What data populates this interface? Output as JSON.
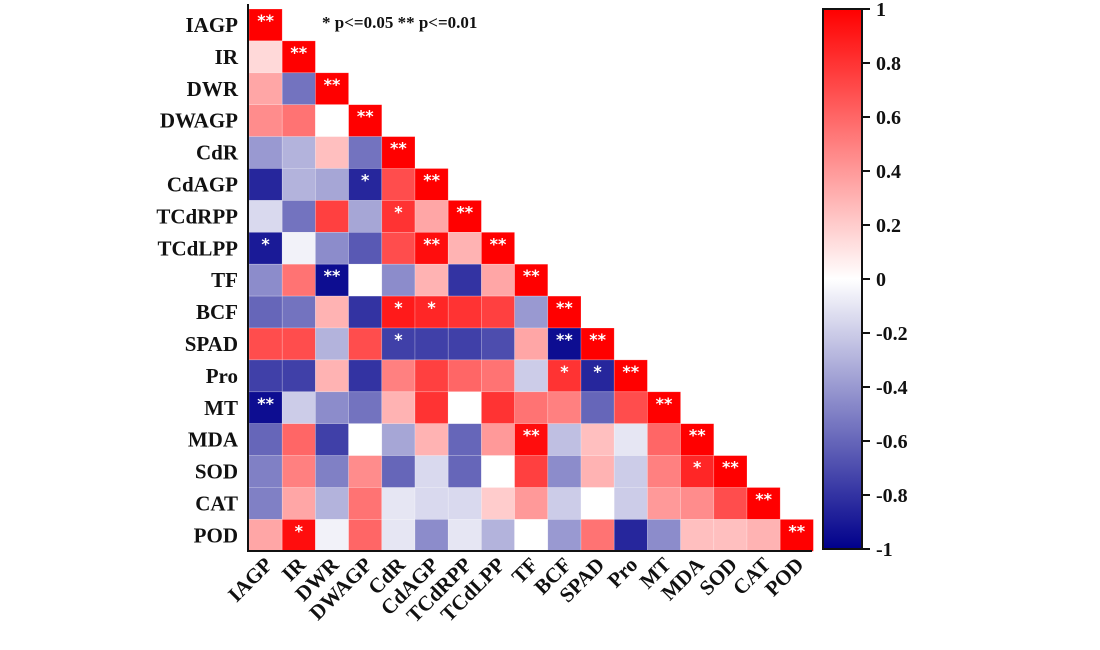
{
  "chart_data": {
    "type": "heatmap",
    "title": "",
    "subtitle": "",
    "xlabel": "",
    "ylabel": "",
    "annotation": "* p<=0.05  ** p<=0.01",
    "variables": [
      "IAGP",
      "IR",
      "DWR",
      "DWAGP",
      "CdR",
      "CdAGP",
      "TCdRPP",
      "TCdLPP",
      "TF",
      "BCF",
      "SPAD",
      "Pro",
      "MT",
      "MDA",
      "SOD",
      "CAT",
      "POD"
    ],
    "matrix": [
      [
        1.0
      ],
      [
        0.15,
        1.0
      ],
      [
        0.35,
        -0.55,
        1.0
      ],
      [
        0.45,
        0.55,
        0.0,
        1.0
      ],
      [
        -0.4,
        -0.3,
        0.25,
        -0.55,
        1.0
      ],
      [
        -0.85,
        -0.3,
        -0.35,
        -0.85,
        0.7,
        1.0
      ],
      [
        -0.15,
        -0.55,
        0.75,
        -0.35,
        0.8,
        0.35,
        1.0
      ],
      [
        -0.9,
        -0.05,
        -0.45,
        -0.65,
        0.7,
        0.95,
        0.3,
        1.0
      ],
      [
        -0.45,
        0.55,
        -0.95,
        0.0,
        -0.45,
        0.3,
        -0.8,
        0.35,
        1.0
      ],
      [
        -0.6,
        -0.55,
        0.3,
        -0.8,
        0.9,
        0.85,
        0.8,
        0.75,
        -0.4,
        1.0
      ],
      [
        0.7,
        0.7,
        -0.3,
        0.7,
        -0.75,
        -0.75,
        -0.75,
        -0.7,
        0.35,
        -0.95,
        1.0
      ],
      [
        -0.75,
        -0.75,
        0.3,
        -0.8,
        0.5,
        0.75,
        0.6,
        0.55,
        -0.2,
        0.8,
        -0.85,
        1.0
      ],
      [
        -0.95,
        -0.2,
        -0.45,
        -0.55,
        0.3,
        0.8,
        0.0,
        0.8,
        0.55,
        0.5,
        -0.6,
        0.7,
        1.0
      ],
      [
        -0.6,
        0.6,
        -0.75,
        0.0,
        -0.35,
        0.3,
        -0.6,
        0.4,
        0.95,
        -0.25,
        0.25,
        -0.1,
        0.6,
        1.0
      ],
      [
        -0.5,
        0.5,
        -0.5,
        0.45,
        -0.6,
        -0.15,
        -0.6,
        0.0,
        0.75,
        -0.45,
        0.3,
        -0.2,
        0.5,
        0.85,
        1.0
      ],
      [
        -0.5,
        0.35,
        -0.3,
        0.55,
        -0.1,
        -0.15,
        -0.15,
        0.2,
        0.4,
        -0.2,
        0.0,
        -0.2,
        0.4,
        0.45,
        0.7,
        1.0
      ],
      [
        0.35,
        0.95,
        -0.05,
        0.6,
        -0.1,
        -0.45,
        -0.1,
        -0.3,
        0.0,
        -0.4,
        0.55,
        -0.85,
        -0.45,
        0.25,
        0.25,
        0.3,
        1.0
      ]
    ],
    "significance": [
      [
        "**"
      ],
      [
        "",
        "**"
      ],
      [
        "",
        "",
        "**"
      ],
      [
        "",
        "",
        "",
        "**"
      ],
      [
        "",
        "",
        "",
        "",
        "**"
      ],
      [
        "",
        "",
        "",
        "*",
        "",
        "**"
      ],
      [
        "",
        "",
        "",
        "",
        "*",
        "",
        "**"
      ],
      [
        "*",
        "",
        "",
        "",
        "",
        "**",
        "",
        "**"
      ],
      [
        "",
        "",
        "**",
        "",
        "",
        "",
        "",
        "",
        "**"
      ],
      [
        "",
        "",
        "",
        "",
        "*",
        "*",
        "",
        "",
        "",
        "**"
      ],
      [
        "",
        "",
        "",
        "",
        "*",
        "",
        "",
        "",
        "",
        "**",
        "**"
      ],
      [
        "",
        "",
        "",
        "",
        "",
        "",
        "",
        "",
        "",
        "*",
        "*",
        "**"
      ],
      [
        "**",
        "",
        "",
        "",
        "",
        "",
        "",
        "",
        "",
        "",
        "",
        "",
        "**"
      ],
      [
        "",
        "",
        "",
        "",
        "",
        "",
        "",
        "",
        "**",
        "",
        "",
        "",
        "",
        "**"
      ],
      [
        "",
        "",
        "",
        "",
        "",
        "",
        "",
        "",
        "",
        "",
        "",
        "",
        "",
        "*",
        "**"
      ],
      [
        "",
        "",
        "",
        "",
        "",
        "",
        "",
        "",
        "",
        "",
        "",
        "",
        "",
        "",
        "",
        "**"
      ],
      [
        "",
        "*",
        "",
        "",
        "",
        "",
        "",
        "",
        "",
        "",
        "",
        "",
        "",
        "",
        "",
        "",
        "**"
      ]
    ],
    "colorbar": {
      "range": [
        -1,
        1
      ],
      "ticks": [
        "1",
        "0.8",
        "0.6",
        "0.4",
        "0.2",
        "0",
        "-0.2",
        "-0.4",
        "-0.6",
        "-0.8",
        "-1"
      ],
      "colors": {
        "high": "#ff0000",
        "mid": "#ffffff",
        "low": "#00008b"
      }
    },
    "legend_position": "right",
    "grid": false
  }
}
